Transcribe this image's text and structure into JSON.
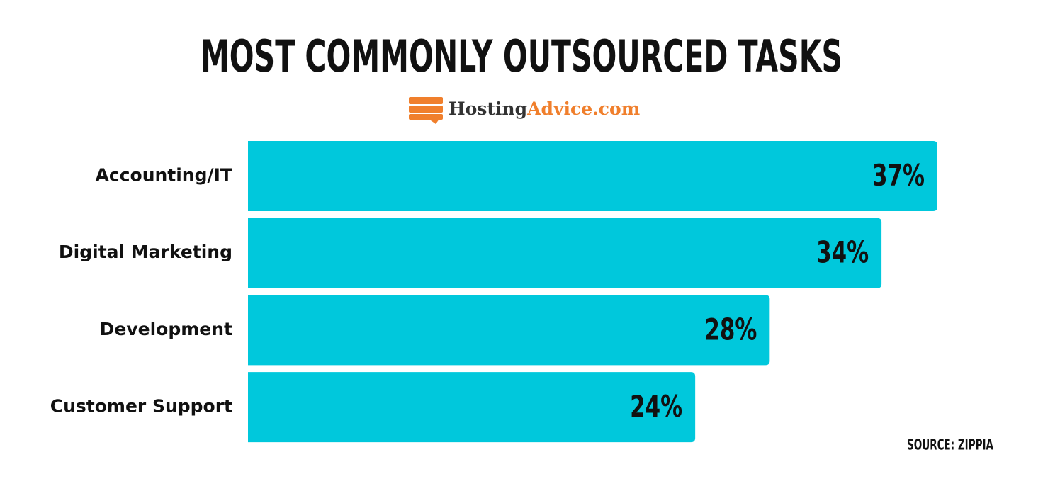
{
  "chart_data": {
    "type": "bar",
    "orientation": "horizontal",
    "title": "MOST COMMONLY OUTSOURCED TASKS",
    "brand": [
      "Hosting",
      "Advice.com"
    ],
    "source": "SOURCE: ZIPPIA",
    "categories": [
      "Accounting/IT",
      "Digital Marketing",
      "Development",
      "Customer Support"
    ],
    "values": [
      37,
      34,
      28,
      24
    ],
    "value_labels": [
      "37%",
      "34%",
      "28%",
      "24%"
    ],
    "color": "#00c8dc"
  }
}
